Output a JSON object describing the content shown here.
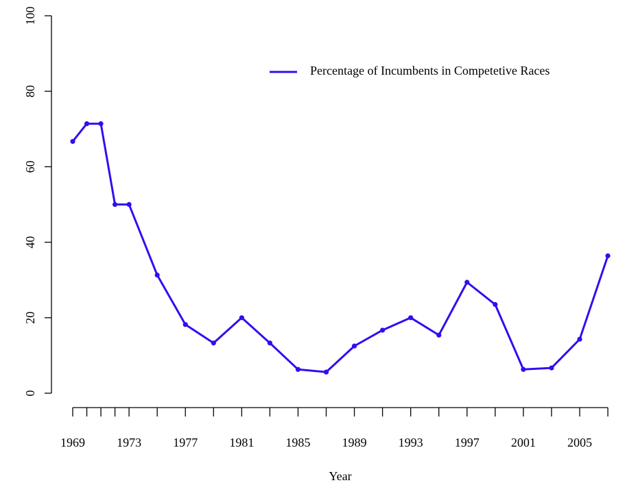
{
  "chart_data": {
    "type": "line",
    "x_label": "Year",
    "x": [
      1969,
      1970,
      1971,
      1972,
      1973,
      1975,
      1977,
      1979,
      1981,
      1983,
      1985,
      1987,
      1989,
      1991,
      1993,
      1995,
      1997,
      1999,
      2001,
      2003,
      2005,
      2007
    ],
    "series": [
      {
        "name": "Percentage of Incumbents in Competetive Races",
        "color": "#2e0ff0",
        "values": [
          66.7,
          71.4,
          71.4,
          50,
          50,
          31.3,
          18.2,
          13.3,
          20,
          13.3,
          6.3,
          5.6,
          12.5,
          16.7,
          20,
          15.4,
          29.4,
          23.5,
          6.3,
          6.7,
          14.3,
          36.4
        ]
      }
    ],
    "xlim": [
      1969,
      2007
    ],
    "xticks": [
      1969,
      1973,
      1977,
      1981,
      1985,
      1989,
      1993,
      1997,
      2001,
      2005
    ],
    "ylim": [
      0,
      100
    ],
    "yticks": [
      0,
      20,
      40,
      60,
      80,
      100
    ],
    "legend": "topright"
  }
}
